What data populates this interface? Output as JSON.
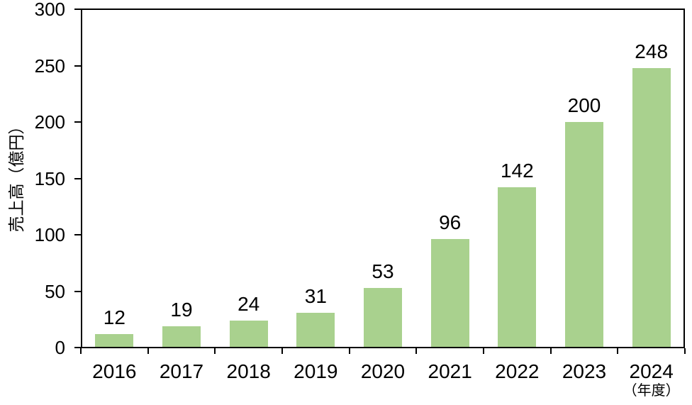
{
  "chart_data": {
    "type": "bar",
    "title": "",
    "categories": [
      "2016",
      "2017",
      "2018",
      "2019",
      "2020",
      "2021",
      "2022",
      "2023",
      "2024"
    ],
    "values": [
      12,
      19,
      24,
      31,
      53,
      96,
      142,
      200,
      248
    ],
    "ylabel": "売上高（億円）",
    "x_unit_label": "（年度）",
    "ylim": [
      0,
      300
    ],
    "yticks": [
      0,
      50,
      100,
      150,
      200,
      250,
      300
    ],
    "grid": false,
    "legend": "none",
    "data_labels": true,
    "bar_color": "#A9D18E",
    "axis_color": "#000000",
    "text_color": "#000000",
    "background_color": "#FFFFFF"
  }
}
